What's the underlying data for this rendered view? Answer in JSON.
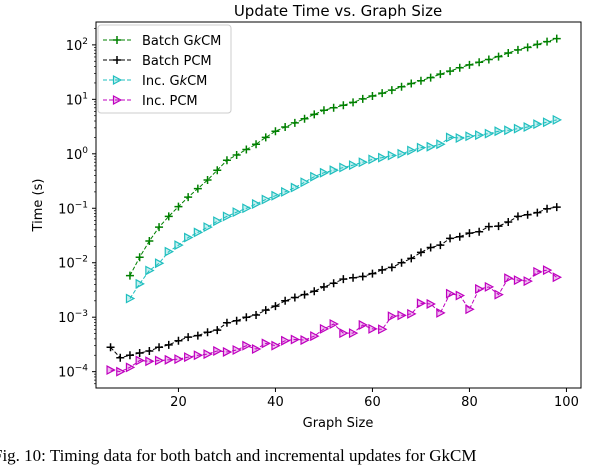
{
  "chart_data": {
    "type": "line",
    "title": "Update Time vs. Graph Size",
    "xlabel": "Graph Size",
    "ylabel": "Time (s)",
    "xlim": [
      3,
      103
    ],
    "ylim_log10": [
      -4.3,
      2.42
    ],
    "yscale": "log",
    "grid": false,
    "legend_placement": "top-left",
    "x_ticks": [
      20,
      40,
      60,
      80,
      100
    ],
    "y_ticks": [
      {
        "base": "10",
        "exp": "−4",
        "v": -4
      },
      {
        "base": "10",
        "exp": "−3",
        "v": -3
      },
      {
        "base": "10",
        "exp": "−2",
        "v": -2
      },
      {
        "base": "10",
        "exp": "−1",
        "v": -1
      },
      {
        "base": "10",
        "exp": "0",
        "v": 0
      },
      {
        "base": "10",
        "exp": "1",
        "v": 1
      },
      {
        "base": "10",
        "exp": "2",
        "v": 2
      }
    ],
    "series": [
      {
        "name": "Batch GkCM",
        "name_parts": [
          "Batch G",
          "k",
          "CM"
        ],
        "color": "#008000",
        "marker": "plus",
        "x_start": 10,
        "values": [
          0.0058,
          0.0126,
          0.025,
          0.045,
          0.071,
          0.107,
          0.16,
          0.23,
          0.33,
          0.5,
          0.76,
          0.95,
          1.2,
          1.5,
          2.0,
          2.6,
          3.1,
          3.7,
          4.4,
          5.3,
          6.3,
          7.0,
          7.8,
          8.8,
          10.2,
          11.5,
          13,
          14.8,
          17,
          19.5,
          22,
          25,
          29,
          33,
          38,
          43,
          48,
          54,
          61,
          71,
          81,
          90,
          102,
          115,
          130
        ]
      },
      {
        "name": "Batch PCM",
        "name_parts": [
          "Batch PCM",
          "",
          ""
        ],
        "color": "#000000",
        "marker": "plus",
        "x_start": 6,
        "values": [
          0.00028,
          0.00018,
          0.0002,
          0.00022,
          0.00024,
          0.00028,
          0.00031,
          0.00037,
          0.00043,
          0.00046,
          0.00053,
          0.00058,
          0.00079,
          0.00086,
          0.001,
          0.0011,
          0.00135,
          0.0016,
          0.002,
          0.0023,
          0.0026,
          0.003,
          0.0036,
          0.0042,
          0.005,
          0.0053,
          0.0056,
          0.0063,
          0.0074,
          0.0082,
          0.01,
          0.012,
          0.0155,
          0.019,
          0.021,
          0.028,
          0.03,
          0.035,
          0.037,
          0.046,
          0.047,
          0.056,
          0.071,
          0.076,
          0.083,
          0.098,
          0.105
        ]
      },
      {
        "name": "Inc. GkCM",
        "name_parts": [
          "Inc. G",
          "k",
          "CM"
        ],
        "color": "#1fbfbf",
        "marker": "triangle-right",
        "x_start": 10,
        "values": [
          0.0022,
          0.0041,
          0.0072,
          0.0098,
          0.016,
          0.021,
          0.029,
          0.036,
          0.045,
          0.058,
          0.071,
          0.085,
          0.1,
          0.12,
          0.145,
          0.17,
          0.2,
          0.24,
          0.3,
          0.38,
          0.45,
          0.5,
          0.56,
          0.62,
          0.7,
          0.79,
          0.85,
          0.93,
          1.0,
          1.15,
          1.3,
          1.35,
          1.5,
          2.0,
          1.95,
          2.1,
          2.2,
          2.35,
          2.6,
          2.7,
          2.9,
          3.1,
          3.5,
          3.8,
          4.2
        ]
      },
      {
        "name": "Inc. PCM",
        "name_parts": [
          "Inc. PCM",
          "",
          ""
        ],
        "color": "#bf00bf",
        "marker": "triangle-right",
        "x_start": 6,
        "values": [
          0.000107,
          0.0001,
          0.00012,
          0.00016,
          0.000155,
          0.00016,
          0.000165,
          0.00017,
          0.000185,
          0.0002,
          0.00021,
          0.00024,
          0.00023,
          0.00025,
          0.0003,
          0.00026,
          0.00033,
          0.0003,
          0.00037,
          0.00039,
          0.00038,
          0.00045,
          0.00061,
          0.00075,
          0.00051,
          0.00051,
          0.00072,
          0.00061,
          0.0006,
          0.00104,
          0.00108,
          0.00115,
          0.0018,
          0.00175,
          0.0012,
          0.0027,
          0.0025,
          0.0014,
          0.0033,
          0.0036,
          0.0026,
          0.0052,
          0.0048,
          0.0046,
          0.0068,
          0.0073,
          0.0054
        ]
      }
    ]
  },
  "caption": "Fig. 10: Timing data for both batch and incremental updates for GkCM"
}
